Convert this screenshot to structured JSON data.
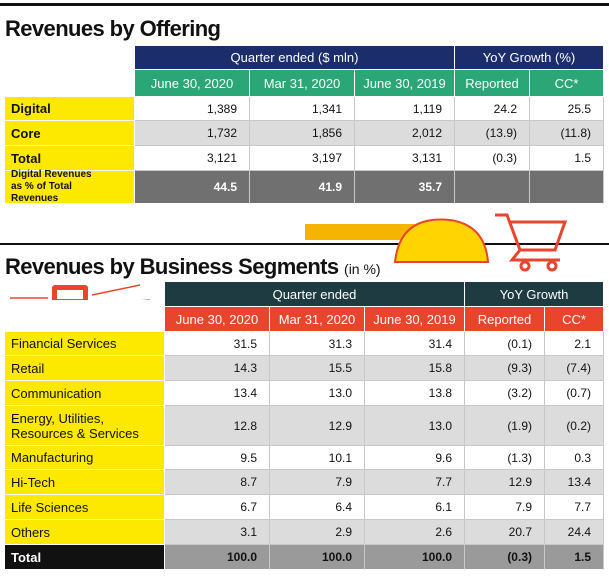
{
  "table1": {
    "title": "Revenues by Offering",
    "group_headers": [
      "Quarter ended ($ mln)",
      "YoY Growth (%)"
    ],
    "columns": [
      "June 30, 2020",
      "Mar 31, 2020",
      "June 30, 2019",
      "Reported",
      "CC*"
    ],
    "rows": [
      {
        "label": "Digital",
        "cells": [
          "1,389",
          "1,341",
          "1,119",
          "24.2",
          "25.5"
        ]
      },
      {
        "label": "Core",
        "cells": [
          "1,732",
          "1,856",
          "2,012",
          "(13.9)",
          "(11.8)"
        ]
      },
      {
        "label": "Total",
        "cells": [
          "3,121",
          "3,197",
          "3,131",
          "(0.3)",
          "1.5"
        ]
      },
      {
        "label": "Digital Revenues as % of Total Revenues",
        "cells": [
          "44.5",
          "41.9",
          "35.7"
        ]
      }
    ]
  },
  "table2": {
    "title": "Revenues by Business Segments",
    "subtitle": "(in %)",
    "group_headers": [
      "Quarter ended",
      "YoY Growth"
    ],
    "columns": [
      "June 30, 2020",
      "Mar 31, 2020",
      "June 30, 2019",
      "Reported",
      "CC*"
    ],
    "rows": [
      {
        "label": "Financial Services",
        "cells": [
          "31.5",
          "31.3",
          "31.4",
          "(0.1)",
          "2.1"
        ]
      },
      {
        "label": "Retail",
        "cells": [
          "14.3",
          "15.5",
          "15.8",
          "(9.3)",
          "(7.4)"
        ]
      },
      {
        "label": "Communication",
        "cells": [
          "13.4",
          "13.0",
          "13.8",
          "(3.2)",
          "(0.7)"
        ]
      },
      {
        "label": "Energy, Utilities, Resources & Services",
        "cells": [
          "12.8",
          "12.9",
          "13.0",
          "(1.9)",
          "(0.2)"
        ]
      },
      {
        "label": "Manufacturing",
        "cells": [
          "9.5",
          "10.1",
          "9.6",
          "(1.3)",
          "0.3"
        ]
      },
      {
        "label": "Hi-Tech",
        "cells": [
          "8.7",
          "7.9",
          "7.7",
          "12.9",
          "13.4"
        ]
      },
      {
        "label": "Life Sciences",
        "cells": [
          "6.7",
          "6.4",
          "6.1",
          "7.9",
          "7.7"
        ]
      },
      {
        "label": "Others",
        "cells": [
          "3.1",
          "2.9",
          "2.6",
          "20.7",
          "24.4"
        ]
      },
      {
        "label": "Total",
        "cells": [
          "100.0",
          "100.0",
          "100.0",
          "(0.3)",
          "1.5"
        ]
      }
    ]
  }
}
